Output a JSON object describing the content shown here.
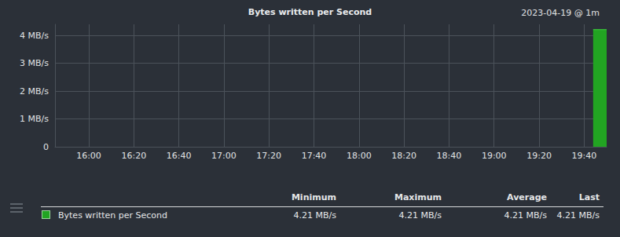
{
  "chart_data": {
    "type": "area",
    "title": "Bytes written per Second",
    "subtitle": "2023-04-19 @ 1m",
    "x": [
      1184,
      1190
    ],
    "series": [
      {
        "name": "Bytes written per Second",
        "color": "#22a422",
        "values": [
          4.21,
          4.21
        ]
      }
    ],
    "xlim": [
      945,
      1190
    ],
    "xticks": [
      {
        "value": 960,
        "label": "16:00"
      },
      {
        "value": 980,
        "label": "16:20"
      },
      {
        "value": 1000,
        "label": "16:40"
      },
      {
        "value": 1020,
        "label": "17:00"
      },
      {
        "value": 1040,
        "label": "17:20"
      },
      {
        "value": 1060,
        "label": "17:40"
      },
      {
        "value": 1080,
        "label": "18:00"
      },
      {
        "value": 1100,
        "label": "18:20"
      },
      {
        "value": 1120,
        "label": "18:40"
      },
      {
        "value": 1140,
        "label": "19:00"
      },
      {
        "value": 1160,
        "label": "19:20"
      },
      {
        "value": 1180,
        "label": "19:40"
      }
    ],
    "ylim": [
      0,
      4.4
    ],
    "yticks": [
      0,
      {
        "value": 1,
        "label": "1 MB/s"
      },
      {
        "value": 2,
        "label": "2 MB/s"
      },
      {
        "value": 3,
        "label": "3 MB/s"
      },
      {
        "value": 4,
        "label": "4 MB/s"
      }
    ],
    "grid": true,
    "stats": {
      "columns": [
        "Minimum",
        "Maximum",
        "Average",
        "Last"
      ],
      "values": [
        "4.21 MB/s",
        "4.21 MB/s",
        "4.21 MB/s",
        "4.21 MB/s"
      ]
    }
  }
}
